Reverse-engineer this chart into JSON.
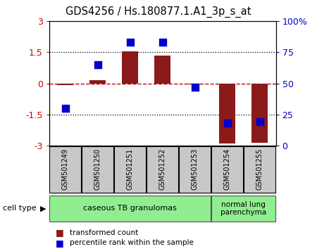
{
  "title": "GDS4256 / Hs.180877.1.A1_3p_s_at",
  "samples": [
    "GSM501249",
    "GSM501250",
    "GSM501251",
    "GSM501252",
    "GSM501253",
    "GSM501254",
    "GSM501255"
  ],
  "transformed_counts": [
    -0.07,
    0.15,
    1.55,
    1.35,
    -0.05,
    -2.9,
    -2.85
  ],
  "percentile_ranks": [
    30,
    65,
    83,
    83,
    47,
    18,
    19
  ],
  "ylim_left": [
    -3,
    3
  ],
  "ylim_right": [
    0,
    100
  ],
  "yticks_left": [
    -3,
    -1.5,
    0,
    1.5,
    3
  ],
  "yticks_right": [
    0,
    25,
    50,
    75,
    100
  ],
  "dotted_yticks": [
    -1.5,
    1.5
  ],
  "bar_color": "#8B1A1A",
  "dot_color": "#0000CD",
  "zero_line_color": "#CC0000",
  "dotted_line_color": "black",
  "group1_label": "caseous TB granulomas",
  "group2_label": "normal lung\nparenchyma",
  "group1_color": "#90EE90",
  "group2_color": "#90EE90",
  "sample_box_color": "#C8C8C8",
  "cell_type_label": "cell type",
  "legend_bar_label": "transformed count",
  "legend_dot_label": "percentile rank within the sample",
  "bar_width": 0.5,
  "dot_size": 55,
  "n_group1": 5,
  "n_group2": 2
}
